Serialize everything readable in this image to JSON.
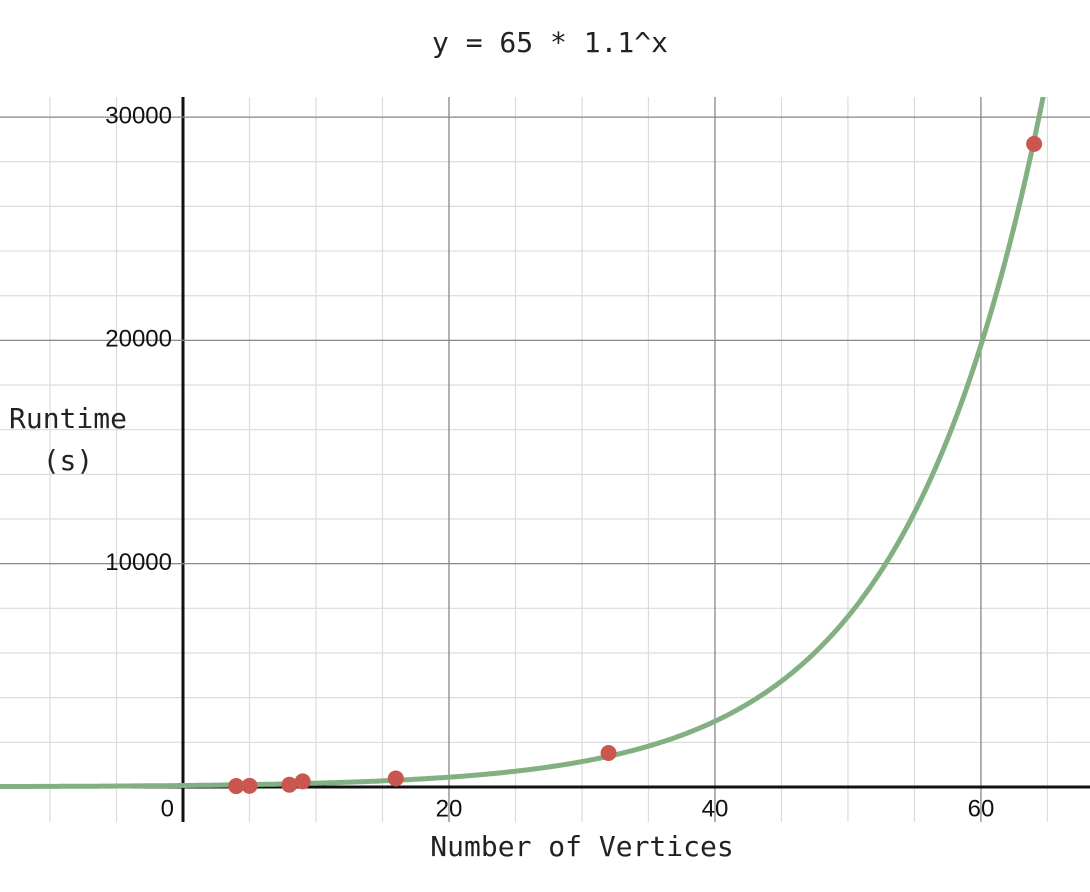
{
  "chart_data": {
    "type": "scatter",
    "title": "y = 65 * 1.1^x",
    "xlabel": "Number of Vertices",
    "ylabel": "Runtime (s)",
    "x": [
      4,
      5,
      8,
      9,
      16,
      32,
      64
    ],
    "values": [
      40,
      50,
      100,
      250,
      380,
      1520,
      28800
    ],
    "color": "#c9574f",
    "curve": {
      "coefficient": 65,
      "base": 1.1,
      "color": "#82b082"
    },
    "xlim": [
      -13.76,
      68.2
    ],
    "ylim": [
      -1570,
      30900
    ],
    "xticks": [
      0,
      20,
      40,
      60
    ],
    "yticks": [
      0,
      10000,
      20000,
      30000
    ],
    "grid": true
  }
}
